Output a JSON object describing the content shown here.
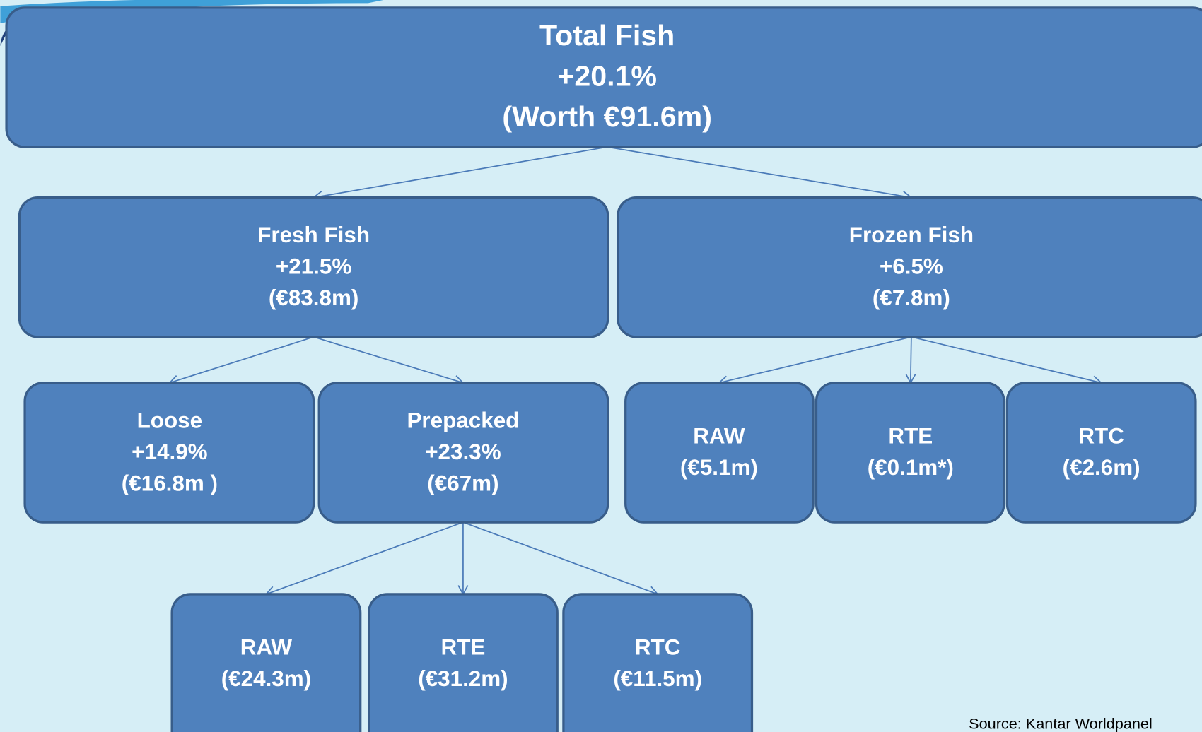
{
  "nodes": [
    {
      "lines": [
        "Total Fish",
        "+20.1%",
        "(Worth €91.6m)"
      ]
    },
    {
      "lines": [
        "Fresh Fish",
        "+21.5%",
        "(€83.8m)"
      ]
    },
    {
      "lines": [
        "Frozen Fish",
        "+6.5%",
        "(€7.8m)"
      ]
    },
    {
      "lines": [
        "Loose",
        "+14.9%",
        "(€16.8m )"
      ]
    },
    {
      "lines": [
        "Prepacked",
        "+23.3%",
        "(€67m)"
      ]
    },
    {
      "lines": [
        "RAW",
        "(€5.1m)"
      ]
    },
    {
      "lines": [
        "RTE",
        "(€0.1m*)"
      ]
    },
    {
      "lines": [
        "RTC",
        "(€2.6m)"
      ]
    },
    {
      "lines": [
        "RAW",
        "(€24.3m)"
      ]
    },
    {
      "lines": [
        "RTE",
        "(€31.2m)"
      ]
    },
    {
      "lines": [
        "RTC",
        "(€11.5m)"
      ]
    }
  ],
  "source": "Source: Kantar Worldpanel"
}
